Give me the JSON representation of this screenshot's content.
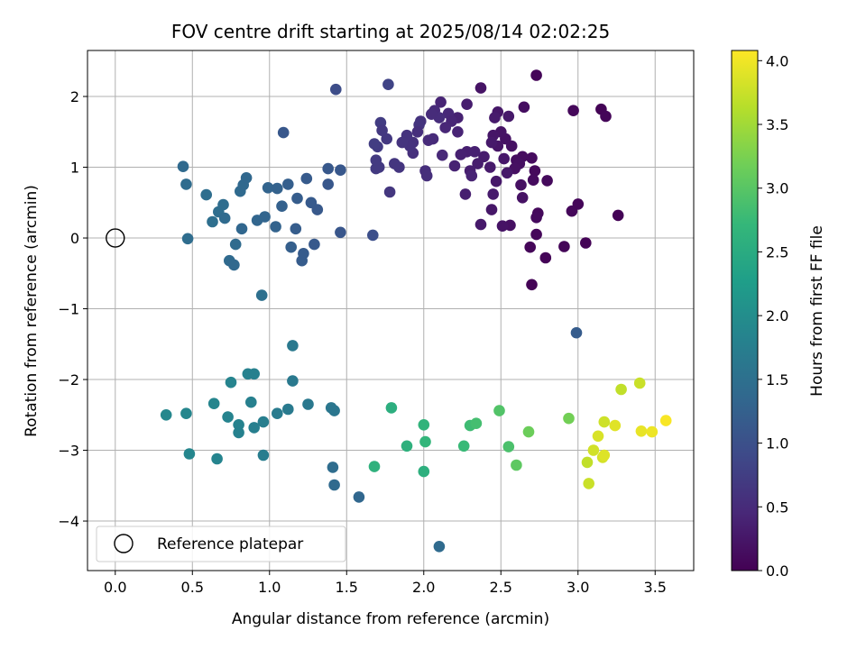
{
  "chart_data": {
    "type": "scatter",
    "title": "FOV centre drift starting at 2025/08/14 02:02:25",
    "xlabel": "Angular distance from reference (arcmin)",
    "ylabel": "Rotation from reference (arcmin)",
    "xlim": [
      -0.18,
      3.75
    ],
    "ylim": [
      -4.7,
      2.65
    ],
    "xticks": [
      0.0,
      0.5,
      1.0,
      1.5,
      2.0,
      2.5,
      3.0,
      3.5
    ],
    "xtick_labels": [
      "0.0",
      "0.5",
      "1.0",
      "1.5",
      "2.0",
      "2.5",
      "3.0",
      "3.5"
    ],
    "yticks": [
      -4,
      -3,
      -2,
      -1,
      0,
      1,
      2
    ],
    "ytick_labels": [
      "−4",
      "−3",
      "−2",
      "−1",
      "0",
      "1",
      "2"
    ],
    "grid": true,
    "colorbar": {
      "label": "Hours from first FF file",
      "colormap": "viridis",
      "range": [
        0.0,
        4.08
      ],
      "ticks": [
        0.0,
        0.5,
        1.0,
        1.5,
        2.0,
        2.5,
        3.0,
        3.5,
        4.0
      ],
      "tick_labels": [
        "0.0",
        "0.5",
        "1.0",
        "1.5",
        "2.0",
        "2.5",
        "3.0",
        "3.5",
        "4.0"
      ]
    },
    "legend": {
      "placement": "lower-left",
      "entries": [
        {
          "label": "Reference platepar",
          "marker": "open-circle"
        }
      ]
    },
    "reference_point": {
      "x": 0.0,
      "y": 0.0
    },
    "points": [
      [
        2.73,
        2.3,
        0.05
      ],
      [
        2.65,
        1.85,
        0.15
      ],
      [
        2.97,
        1.8,
        0.08
      ],
      [
        3.15,
        1.82,
        0.03
      ],
      [
        3.18,
        1.72,
        0.05
      ],
      [
        2.37,
        2.12,
        0.22
      ],
      [
        2.48,
        1.78,
        0.25
      ],
      [
        2.55,
        1.72,
        0.28
      ],
      [
        2.46,
        1.7,
        0.3
      ],
      [
        2.28,
        1.89,
        0.33
      ],
      [
        2.22,
        1.7,
        0.38
      ],
      [
        2.11,
        1.92,
        0.42
      ],
      [
        2.16,
        1.76,
        0.45
      ],
      [
        2.07,
        1.8,
        0.48
      ],
      [
        2.1,
        1.7,
        0.52
      ],
      [
        1.98,
        1.65,
        0.58
      ],
      [
        1.97,
        1.6,
        0.62
      ],
      [
        1.72,
        1.63,
        0.72
      ],
      [
        1.77,
        2.17,
        0.82
      ],
      [
        1.43,
        2.1,
        0.95
      ],
      [
        2.7,
        1.13,
        0.12
      ],
      [
        2.72,
        0.95,
        0.1
      ],
      [
        2.64,
        1.15,
        0.13
      ],
      [
        2.6,
        1.1,
        0.14
      ],
      [
        2.62,
        1.05,
        0.16
      ],
      [
        2.59,
        0.98,
        0.17
      ],
      [
        2.57,
        1.3,
        0.19
      ],
      [
        2.53,
        1.4,
        0.2
      ],
      [
        2.5,
        1.5,
        0.22
      ],
      [
        2.45,
        1.45,
        0.24
      ],
      [
        2.48,
        1.3,
        0.23
      ],
      [
        2.52,
        1.12,
        0.26
      ],
      [
        2.54,
        0.92,
        0.27
      ],
      [
        2.44,
        1.35,
        0.28
      ],
      [
        2.43,
        1.0,
        0.29
      ],
      [
        2.39,
        1.15,
        0.31
      ],
      [
        2.35,
        1.05,
        0.32
      ],
      [
        2.3,
        0.95,
        0.34
      ],
      [
        2.28,
        1.22,
        0.35
      ],
      [
        2.24,
        1.18,
        0.37
      ],
      [
        2.2,
        1.02,
        0.39
      ],
      [
        2.22,
        1.5,
        0.41
      ],
      [
        2.18,
        1.65,
        0.43
      ],
      [
        2.14,
        1.56,
        0.44
      ],
      [
        2.12,
        1.17,
        0.46
      ],
      [
        2.06,
        1.4,
        0.49
      ],
      [
        2.03,
        1.38,
        0.5
      ],
      [
        2.05,
        1.75,
        0.51
      ],
      [
        2.01,
        0.95,
        0.53
      ],
      [
        2.02,
        0.88,
        0.54
      ],
      [
        1.96,
        1.5,
        0.55
      ],
      [
        1.93,
        1.2,
        0.56
      ],
      [
        1.93,
        1.35,
        0.57
      ],
      [
        1.91,
        1.3,
        0.59
      ],
      [
        1.89,
        1.45,
        0.6
      ],
      [
        1.86,
        1.35,
        0.61
      ],
      [
        1.84,
        1.0,
        0.63
      ],
      [
        1.81,
        1.05,
        0.64
      ],
      [
        1.76,
        1.4,
        0.66
      ],
      [
        1.73,
        1.52,
        0.67
      ],
      [
        1.71,
        1.0,
        0.68
      ],
      [
        1.69,
        0.98,
        0.69
      ],
      [
        1.69,
        1.1,
        0.7
      ],
      [
        1.7,
        1.29,
        0.71
      ],
      [
        1.68,
        1.33,
        0.73
      ],
      [
        2.33,
        1.22,
        0.36
      ],
      [
        2.31,
        0.88,
        0.4
      ],
      [
        2.27,
        0.62,
        0.35
      ],
      [
        2.45,
        0.62,
        0.3
      ],
      [
        2.47,
        0.8,
        0.27
      ],
      [
        2.63,
        0.75,
        0.18
      ],
      [
        2.64,
        0.57,
        0.2
      ],
      [
        2.56,
        0.18,
        0.17
      ],
      [
        2.51,
        0.17,
        0.21
      ],
      [
        2.44,
        0.4,
        0.25
      ],
      [
        2.37,
        0.19,
        0.28
      ],
      [
        2.74,
        0.35,
        0.09
      ],
      [
        2.73,
        0.29,
        0.11
      ],
      [
        2.73,
        0.05,
        0.07
      ],
      [
        2.69,
        -0.13,
        0.06
      ],
      [
        2.79,
        -0.28,
        0.04
      ],
      [
        2.7,
        -0.66,
        0.02
      ],
      [
        2.8,
        0.81,
        0.1
      ],
      [
        2.71,
        0.82,
        0.12
      ],
      [
        2.96,
        0.38,
        0.07
      ],
      [
        3.0,
        0.48,
        0.06
      ],
      [
        2.91,
        -0.12,
        0.05
      ],
      [
        3.05,
        -0.07,
        0.03
      ],
      [
        3.26,
        0.32,
        0.02
      ],
      [
        2.99,
        -1.34,
        1.18
      ],
      [
        1.78,
        0.65,
        0.65
      ],
      [
        1.67,
        0.04,
        0.98
      ],
      [
        0.44,
        1.01,
        1.4
      ],
      [
        0.46,
        0.76,
        1.43
      ],
      [
        0.47,
        -0.01,
        1.45
      ],
      [
        0.59,
        0.61,
        1.47
      ],
      [
        0.63,
        0.23,
        1.49
      ],
      [
        0.67,
        0.37,
        1.46
      ],
      [
        0.7,
        0.47,
        1.44
      ],
      [
        0.71,
        0.28,
        1.42
      ],
      [
        0.74,
        -0.32,
        1.4
      ],
      [
        0.77,
        -0.38,
        1.38
      ],
      [
        0.78,
        -0.09,
        1.41
      ],
      [
        0.81,
        0.66,
        1.39
      ],
      [
        0.83,
        0.75,
        1.37
      ],
      [
        0.85,
        0.85,
        1.36
      ],
      [
        0.82,
        0.13,
        1.35
      ],
      [
        0.92,
        0.25,
        1.33
      ],
      [
        0.97,
        0.3,
        1.32
      ],
      [
        0.99,
        0.71,
        1.3
      ],
      [
        1.04,
        0.16,
        1.29
      ],
      [
        1.05,
        0.7,
        1.27
      ],
      [
        1.08,
        0.45,
        1.25
      ],
      [
        1.12,
        0.76,
        1.23
      ],
      [
        1.14,
        -0.13,
        1.22
      ],
      [
        1.17,
        0.13,
        1.2
      ],
      [
        1.18,
        0.56,
        1.19
      ],
      [
        1.21,
        -0.32,
        1.18
      ],
      [
        1.22,
        -0.22,
        1.17
      ],
      [
        1.24,
        0.84,
        1.16
      ],
      [
        1.27,
        0.5,
        1.15
      ],
      [
        1.29,
        -0.09,
        1.14
      ],
      [
        1.31,
        0.4,
        1.13
      ],
      [
        1.38,
        0.98,
        1.12
      ],
      [
        1.38,
        0.76,
        1.11
      ],
      [
        1.46,
        0.96,
        1.1
      ],
      [
        1.46,
        0.08,
        1.09
      ],
      [
        1.09,
        1.49,
        1.1
      ],
      [
        0.95,
        -0.81,
        1.5
      ],
      [
        1.15,
        -1.52,
        1.65
      ],
      [
        0.33,
        -2.5,
        1.9
      ],
      [
        0.46,
        -2.48,
        1.88
      ],
      [
        0.48,
        -3.05,
        1.87
      ],
      [
        0.64,
        -2.34,
        1.86
      ],
      [
        0.66,
        -3.12,
        1.85
      ],
      [
        0.73,
        -2.53,
        1.83
      ],
      [
        0.75,
        -2.04,
        1.84
      ],
      [
        0.8,
        -2.64,
        1.82
      ],
      [
        0.8,
        -2.75,
        1.8
      ],
      [
        0.86,
        -1.92,
        1.79
      ],
      [
        0.88,
        -2.32,
        1.78
      ],
      [
        0.9,
        -1.92,
        1.77
      ],
      [
        0.9,
        -2.68,
        1.76
      ],
      [
        0.96,
        -2.6,
        1.75
      ],
      [
        0.96,
        -3.07,
        1.72
      ],
      [
        1.05,
        -2.48,
        1.7
      ],
      [
        1.12,
        -2.42,
        1.68
      ],
      [
        1.15,
        -2.02,
        1.66
      ],
      [
        1.25,
        -2.35,
        1.64
      ],
      [
        1.4,
        -2.4,
        1.62
      ],
      [
        1.42,
        -2.44,
        1.6
      ],
      [
        1.41,
        -3.24,
        1.45
      ],
      [
        1.42,
        -3.49,
        1.4
      ],
      [
        1.58,
        -3.66,
        1.35
      ],
      [
        2.1,
        -4.36,
        1.42
      ],
      [
        1.79,
        -2.4,
        2.55
      ],
      [
        1.68,
        -3.23,
        2.62
      ],
      [
        1.89,
        -2.94,
        2.6
      ],
      [
        2.0,
        -2.64,
        2.65
      ],
      [
        2.01,
        -2.88,
        2.68
      ],
      [
        2.0,
        -3.3,
        2.58
      ],
      [
        2.26,
        -2.94,
        2.75
      ],
      [
        2.3,
        -2.65,
        2.8
      ],
      [
        2.34,
        -2.62,
        2.85
      ],
      [
        2.49,
        -2.44,
        2.95
      ],
      [
        2.55,
        -2.95,
        2.9
      ],
      [
        2.6,
        -3.21,
        3.05
      ],
      [
        2.68,
        -2.74,
        3.15
      ],
      [
        2.94,
        -2.55,
        3.2
      ],
      [
        3.06,
        -3.17,
        3.7
      ],
      [
        3.07,
        -3.47,
        3.75
      ],
      [
        3.1,
        -3.0,
        3.8
      ],
      [
        3.13,
        -2.8,
        3.85
      ],
      [
        3.16,
        -3.1,
        3.82
      ],
      [
        3.17,
        -2.6,
        3.78
      ],
      [
        3.17,
        -3.07,
        3.88
      ],
      [
        3.24,
        -2.65,
        3.9
      ],
      [
        3.28,
        -2.14,
        3.7
      ],
      [
        3.4,
        -2.05,
        3.75
      ],
      [
        3.41,
        -2.73,
        3.95
      ],
      [
        3.48,
        -2.74,
        3.98
      ],
      [
        3.57,
        -2.58,
        4.05
      ]
    ]
  }
}
